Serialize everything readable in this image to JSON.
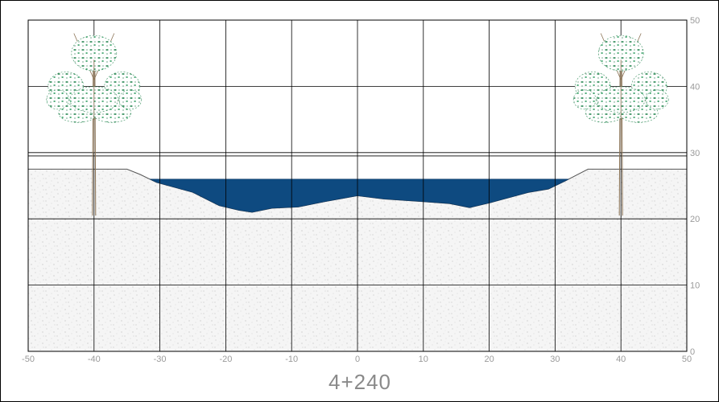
{
  "section": {
    "station_label": "4+240",
    "x_ticks": [
      "-50",
      "-40",
      "-30",
      "-20",
      "-10",
      "0",
      "10",
      "20",
      "30",
      "40",
      "50"
    ],
    "y_ticks": [
      "50",
      "40",
      "30",
      "20",
      "10",
      "0"
    ],
    "x_range": [
      -50,
      50
    ],
    "y_range": [
      0,
      50
    ],
    "grid": true
  },
  "profile": {
    "ground_top_left_level": 27.5,
    "water_level": 26.0,
    "ground_points": [
      [
        -50,
        27.5
      ],
      [
        -35,
        27.5
      ],
      [
        -33,
        26.7
      ],
      [
        -30.5,
        25.5
      ],
      [
        -25,
        24.0
      ],
      [
        -21,
        22.0
      ],
      [
        -18,
        21.3
      ],
      [
        -16,
        21.0
      ],
      [
        -13,
        21.6
      ],
      [
        -9,
        21.8
      ],
      [
        -5,
        22.6
      ],
      [
        0,
        23.5
      ],
      [
        4,
        23.0
      ],
      [
        10,
        22.6
      ],
      [
        14,
        22.3
      ],
      [
        17,
        21.7
      ],
      [
        20,
        22.4
      ],
      [
        23,
        23.2
      ],
      [
        26,
        24.0
      ],
      [
        29,
        24.5
      ],
      [
        31.5,
        25.7
      ],
      [
        35,
        27.5
      ],
      [
        50,
        27.5
      ]
    ]
  },
  "colors": {
    "water": "#0e4a80",
    "soil": "#f4f4f4",
    "grid": "#000000",
    "tick_text": "#9a9a9a",
    "tree_foliage": "#2e8b57",
    "tree_trunk": "#8b7355"
  },
  "trees": [
    {
      "name": "tree-left",
      "x_pos": -40
    },
    {
      "name": "tree-right",
      "x_pos": 40
    }
  ]
}
